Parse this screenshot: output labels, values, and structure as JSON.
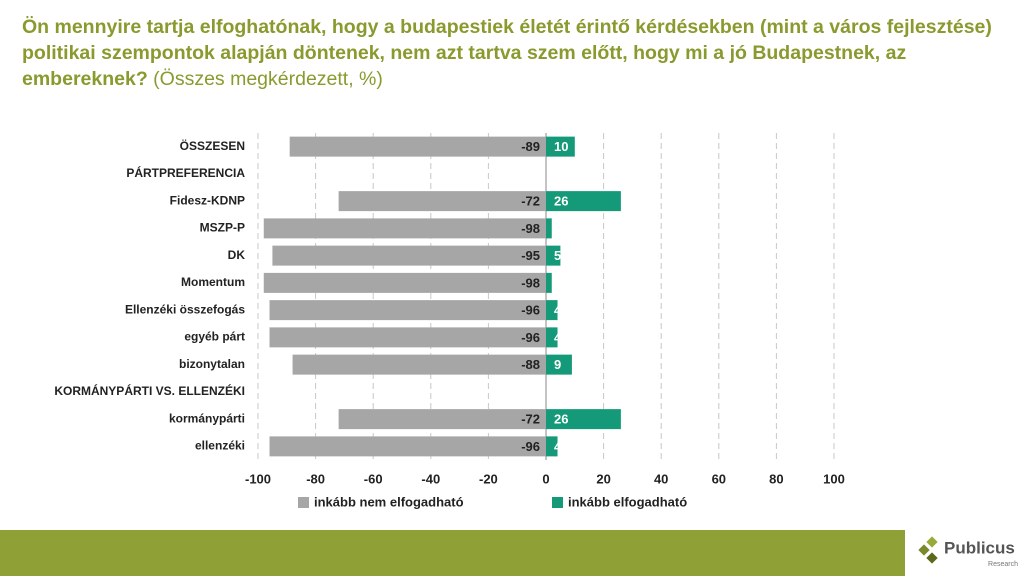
{
  "chart_data": {
    "type": "bar",
    "orientation": "horizontal",
    "stacked": false,
    "title": "Ön mennyire tartja elfoghatónak, hogy a budapestiek életét érintő kérdésekben (mint a város fejlesztése) politikai szempontok alapján döntenek, nem azt tartva szem előtt, hogy mi a jó Budapestnek, az embereknek?",
    "subtitle": "(Összes megkérdezett, %)",
    "categories": [
      "ÖSSZESEN",
      "PÁRTPREFERENCIA",
      "Fidesz-KDNP",
      "MSZP-P",
      "DK",
      "Momentum",
      "Ellenzéki összefogás",
      "egyéb párt",
      "bizonytalan",
      "KORMÁNYPÁRTI VS. ELLENZÉKI",
      "kormánypárti",
      "ellenzéki"
    ],
    "series": [
      {
        "name": "inkább nem elfogadható",
        "color": "#a6a6a6",
        "values": [
          -89,
          null,
          -72,
          -98,
          -95,
          -98,
          -96,
          -96,
          -88,
          null,
          -72,
          -96
        ]
      },
      {
        "name": "inkább elfogadható",
        "color": "#149a78",
        "values": [
          10,
          null,
          26,
          2,
          5,
          2,
          4,
          4,
          9,
          null,
          26,
          4
        ]
      }
    ],
    "xlim": [
      -100,
      100
    ],
    "xticks": [
      -100,
      -80,
      -60,
      -40,
      -20,
      0,
      20,
      40,
      60,
      80,
      100
    ],
    "grid": true,
    "legend": "bottom"
  },
  "logo": {
    "name": "Publicus",
    "tagline": "Research"
  }
}
